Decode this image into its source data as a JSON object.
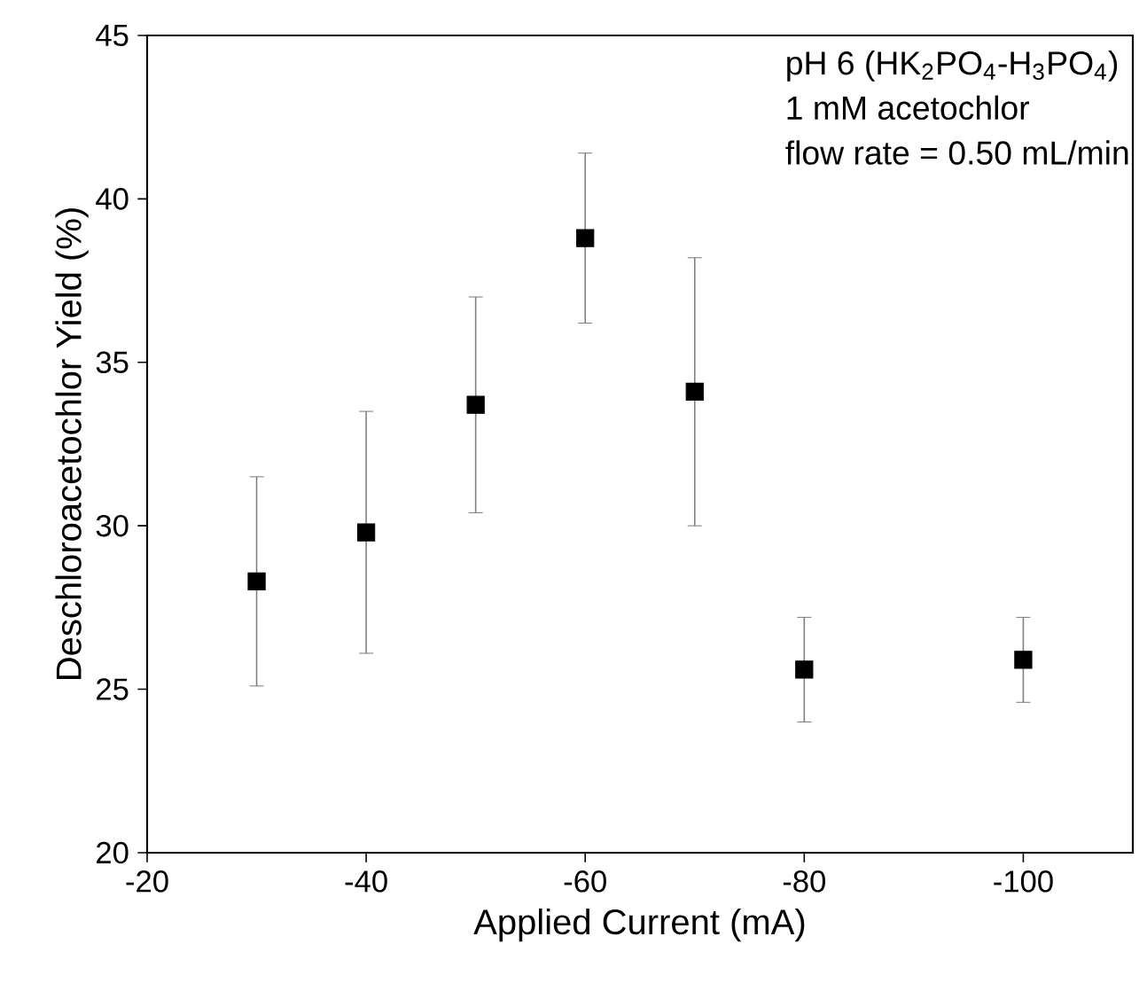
{
  "chart_data": {
    "type": "scatter",
    "xlabel": "Applied Current (mA)",
    "ylabel": "Deschloroacetochlor Yield (%)",
    "annotations": [
      "pH 6 (HK$_{2}$PO$_{4}$-H$_{3}$PO$_{4}$)",
      "1 mM acetochlor",
      "flow rate = 0.50 mL/min"
    ],
    "x": [
      -30,
      -40,
      -50,
      -60,
      -70,
      -80,
      -100
    ],
    "values": [
      28.3,
      29.8,
      33.7,
      38.8,
      34.1,
      25.6,
      25.9
    ],
    "errors": [
      [
        25.1,
        31.5
      ],
      [
        26.1,
        33.5
      ],
      [
        30.4,
        37.0
      ],
      [
        36.2,
        41.4
      ],
      [
        30.0,
        38.2
      ],
      [
        24.0,
        27.2
      ],
      [
        24.6,
        27.2
      ]
    ],
    "color": "#000000",
    "marker": "square",
    "grid": false,
    "xlim": [
      -20,
      -110
    ],
    "xticks": [
      -20,
      -40,
      -60,
      -80,
      -100
    ],
    "ylim": [
      20,
      45
    ],
    "yticks": [
      20,
      25,
      30,
      35,
      40,
      45
    ]
  }
}
